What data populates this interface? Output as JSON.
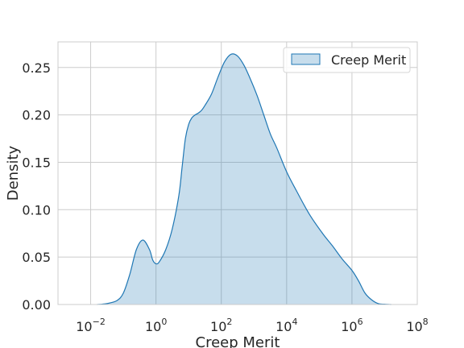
{
  "chart_data": {
    "type": "area",
    "title": "",
    "xlabel": "Creep Merit",
    "ylabel": "Density",
    "x_scale": "log",
    "xlim": [
      0.001,
      100000000
    ],
    "ylim": [
      0,
      0.277
    ],
    "x_ticks": [
      {
        "value": 0.01,
        "base": "10",
        "exp": "−2"
      },
      {
        "value": 1,
        "base": "10",
        "exp": "0"
      },
      {
        "value": 100,
        "base": "10",
        "exp": "2"
      },
      {
        "value": 10000,
        "base": "10",
        "exp": "4"
      },
      {
        "value": 1000000,
        "base": "10",
        "exp": "6"
      },
      {
        "value": 100000000,
        "base": "10",
        "exp": "8"
      }
    ],
    "y_ticks": [
      {
        "value": 0.0,
        "label": "0.00"
      },
      {
        "value": 0.05,
        "label": "0.05"
      },
      {
        "value": 0.1,
        "label": "0.10"
      },
      {
        "value": 0.15,
        "label": "0.15"
      },
      {
        "value": 0.2,
        "label": "0.20"
      },
      {
        "value": 0.25,
        "label": "0.25"
      }
    ],
    "grid": true,
    "legend_position": "top-right",
    "series": [
      {
        "name": "Creep Merit",
        "line_color": "#1f77b4",
        "fill_color": "#1f77b4",
        "fill_opacity": 0.25,
        "x": [
          0.0158,
          0.0316,
          0.0631,
          0.1,
          0.1585,
          0.2512,
          0.3981,
          0.631,
          0.7943,
          1.0,
          1.2589,
          1.9953,
          3.1623,
          5.0119,
          6.3096,
          7.9433,
          10.0,
          12.5893,
          15.8489,
          19.9526,
          25.1189,
          31.6228,
          50.1187,
          79.4328,
          125.8925,
          199.5262,
          316.2278,
          501.1872,
          794.3282,
          1258.9254,
          1995.2623,
          3162.2777,
          5011.8723,
          10000,
          19952.6231,
          50118.7234,
          125892.5412,
          251188.6432,
          501187.2336,
          1000000,
          1584893.1925,
          2511886.4315,
          3981071.7055,
          6309573.4448,
          10000000,
          15848931.9246
        ],
        "y": [
          0.0,
          0.001,
          0.004,
          0.012,
          0.032,
          0.058,
          0.068,
          0.058,
          0.047,
          0.043,
          0.045,
          0.058,
          0.08,
          0.115,
          0.145,
          0.175,
          0.19,
          0.197,
          0.2,
          0.202,
          0.205,
          0.21,
          0.222,
          0.24,
          0.256,
          0.264,
          0.262,
          0.252,
          0.237,
          0.22,
          0.2,
          0.18,
          0.165,
          0.14,
          0.12,
          0.095,
          0.075,
          0.062,
          0.048,
          0.036,
          0.025,
          0.012,
          0.005,
          0.001,
          0.0003,
          0.0
        ]
      }
    ]
  }
}
